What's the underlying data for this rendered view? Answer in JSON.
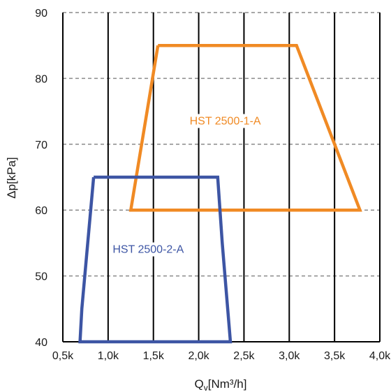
{
  "chart_data": {
    "type": "area",
    "xlabel": "Qv[Nm³/h]",
    "xlabel_main": "Q",
    "xlabel_sub": "v",
    "xlabel_unit": "[Nm³/h]",
    "ylabel": "Δp[kPa]",
    "xlim": [
      500,
      4000
    ],
    "ylim": [
      40,
      90
    ],
    "x_ticks": [
      500,
      1000,
      1500,
      2000,
      2500,
      3000,
      3500,
      4000
    ],
    "x_tick_labels": [
      "0,5k",
      "1,0k",
      "1,5k",
      "2,0k",
      "2,5k",
      "3,0k",
      "3,5k",
      "4,0k"
    ],
    "y_ticks": [
      40,
      50,
      60,
      70,
      80,
      90
    ],
    "y_tick_labels": [
      "40",
      "50",
      "60",
      "70",
      "80",
      "90"
    ],
    "grid": {
      "vertical": "solid",
      "horizontal": "dashed"
    },
    "series": [
      {
        "name": "HST 2500-1-A",
        "color": "#F08A24",
        "label_at": [
          1900,
          73
        ],
        "points": [
          [
            1550,
            85
          ],
          [
            3080,
            85
          ],
          [
            3780,
            60
          ],
          [
            1250,
            60
          ],
          [
            1550,
            85
          ]
        ]
      },
      {
        "name": "HST 2500-2-A",
        "color": "#3D55A4",
        "label_at": [
          1050,
          53.5
        ],
        "points": [
          [
            840,
            65
          ],
          [
            2210,
            65
          ],
          [
            2260,
            55
          ],
          [
            2350,
            40
          ],
          [
            690,
            40
          ],
          [
            710,
            45
          ],
          [
            840,
            65
          ]
        ]
      }
    ]
  }
}
